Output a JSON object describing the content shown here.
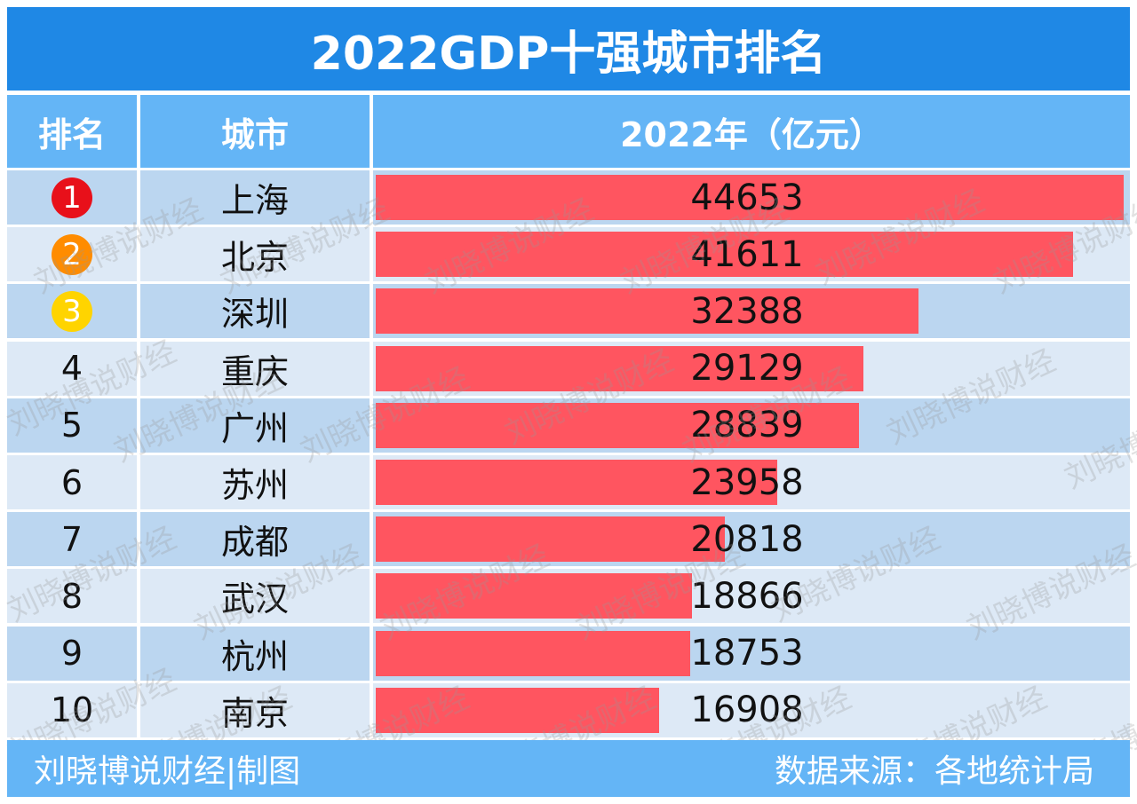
{
  "title": "2022GDP十强城市排名",
  "headers": {
    "rank": "排名",
    "city": "城市",
    "value": "2022年（亿元）"
  },
  "colors": {
    "title_bg": "#1f88e5",
    "header_bg": "#64b5f6",
    "row_dark": "#bbd6f0",
    "row_light": "#dde9f6",
    "bar": "#ff5560",
    "badge_1": "#e8101a",
    "badge_2": "#ff8c00",
    "badge_3": "#ffd400"
  },
  "chart_data": {
    "type": "bar",
    "orientation": "horizontal",
    "title": "2022GDP十强城市排名",
    "xlabel": "2022年（亿元）",
    "ranks": [
      "1",
      "2",
      "3",
      "4",
      "5",
      "6",
      "7",
      "8",
      "9",
      "10"
    ],
    "categories": [
      "上海",
      "北京",
      "深圳",
      "重庆",
      "广州",
      "苏州",
      "成都",
      "武汉",
      "杭州",
      "南京"
    ],
    "values": [
      44653,
      41611,
      32388,
      29129,
      28839,
      23958,
      20818,
      18866,
      18753,
      16908
    ],
    "xlim": [
      0,
      44653
    ]
  },
  "watermark": "刘晓博说财经",
  "footer": {
    "left": "刘晓博说财经|制图",
    "right": "数据来源：各地统计局"
  }
}
